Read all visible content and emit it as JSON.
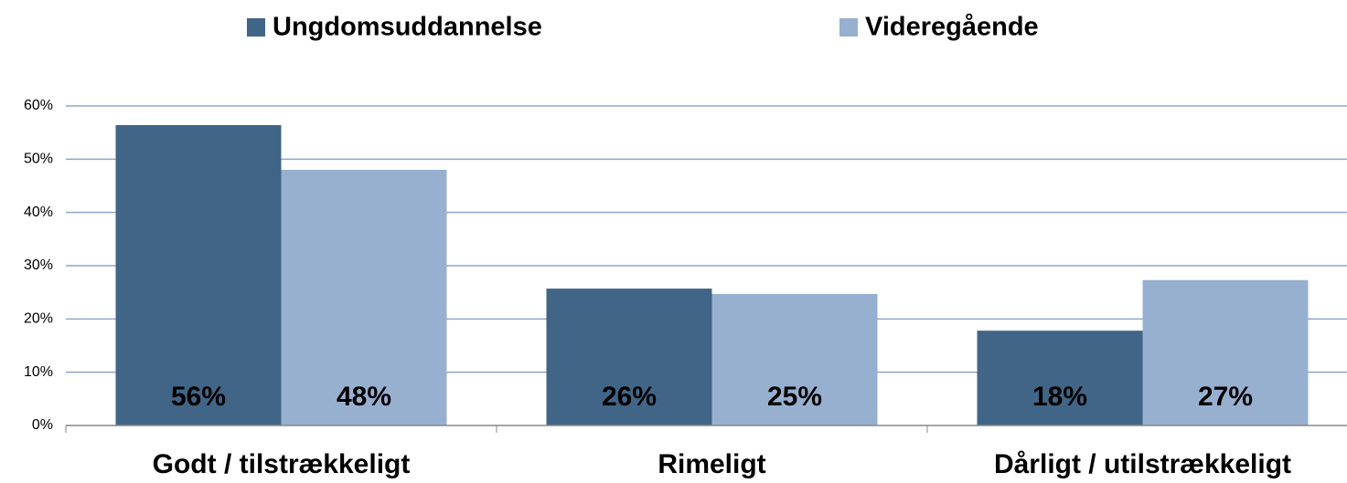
{
  "chart_data": {
    "type": "bar",
    "categories": [
      "Godt / tilstrækkeligt",
      "Rimeligt",
      "Dårligt / utilstrækkeligt"
    ],
    "series": [
      {
        "name": "Ungdomsuddannelse",
        "color": "#416586",
        "values": [
          56.4,
          25.7,
          17.8
        ],
        "value_labels": [
          "56%",
          "26%",
          "18%"
        ]
      },
      {
        "name": "Videregående",
        "color": "#98b0d0",
        "values": [
          48,
          24.7,
          27.3
        ],
        "value_labels": [
          "48%",
          "25%",
          "27%"
        ]
      }
    ],
    "ylim": [
      0,
      60
    ],
    "yticks": [
      {
        "value": 0,
        "label": "0%"
      },
      {
        "value": 10,
        "label": "10%"
      },
      {
        "value": 20,
        "label": "20%"
      },
      {
        "value": 30,
        "label": "30%"
      },
      {
        "value": 40,
        "label": "40%"
      },
      {
        "value": 50,
        "label": "50%"
      },
      {
        "value": 60,
        "label": "60%"
      }
    ],
    "grid": true,
    "legend": "top"
  }
}
